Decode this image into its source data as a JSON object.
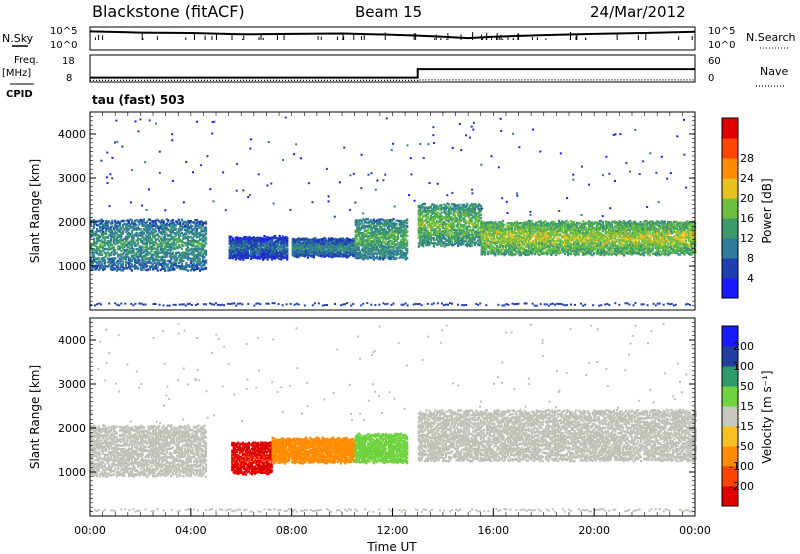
{
  "header": {
    "radar": "Blackstone (fitACF)",
    "beam": "Beam 15",
    "date": "24/Mar/2012"
  },
  "left_labels": {
    "nsky": "N.Sky",
    "freq": "Freq.",
    "freq_unit": "[MHz]",
    "cpid": "CPID"
  },
  "right_labels": {
    "nsearch": "N.Search",
    "nave": "Nave"
  },
  "mode_text": "tau (fast) 503",
  "colors": {
    "power_scale": [
      "#1a1aff",
      "#1f3fb0",
      "#2e7a9a",
      "#3d9a6a",
      "#6fbf3f",
      "#e8c020",
      "#ff8c00",
      "#ff4500",
      "#e00000"
    ],
    "velocity_scale": [
      "#e00000",
      "#ff4500",
      "#ff8c00",
      "#f5c020",
      "#c8c8c0",
      "#6fd23f",
      "#2e9a6a",
      "#2040a0",
      "#1a1aff"
    ],
    "ground_scatter": "#c0c0b8"
  },
  "chart_data": [
    {
      "type": "line",
      "panel": "noise",
      "left_ticks": [
        "10^5",
        "10^0"
      ],
      "right_ticks": [
        "10^5",
        "10^0"
      ],
      "x_hours": [
        0,
        2,
        4,
        6,
        8,
        10,
        12,
        13,
        14,
        15,
        16,
        18,
        20,
        22,
        24
      ],
      "nsky_log": [
        4.2,
        3.9,
        3.8,
        3.5,
        3.6,
        3.7,
        3.4,
        3.2,
        2.9,
        2.6,
        2.9,
        3.3,
        3.6,
        3.8,
        4.1
      ]
    },
    {
      "type": "line",
      "panel": "frequency",
      "left_ticks": [
        "18",
        "8"
      ],
      "right_ticks": [
        "60",
        "0"
      ],
      "x_hours": [
        0,
        13,
        13,
        24
      ],
      "freq_mhz": [
        10,
        10,
        15,
        15
      ],
      "nave": [
        2,
        2,
        4,
        4
      ]
    },
    {
      "type": "heatmap",
      "panel": "power",
      "ylabel": "Slant Range [km]",
      "ylim": [
        0,
        4500
      ],
      "y_ticks": [
        "1000",
        "2000",
        "3000",
        "4000"
      ],
      "colorbar_label": "Power [dB]",
      "colorbar_ticks": [
        "4",
        "8",
        "12",
        "16",
        "20",
        "24",
        "28"
      ],
      "bands": [
        {
          "t0": 0.0,
          "t1": 4.6,
          "r0": 950,
          "r1": 2100,
          "v": 14
        },
        {
          "t0": 5.5,
          "t1": 7.8,
          "r0": 1200,
          "r1": 1700,
          "v": 10
        },
        {
          "t0": 8.0,
          "t1": 10.5,
          "r0": 1250,
          "r1": 1650,
          "v": 12
        },
        {
          "t0": 10.5,
          "t1": 12.6,
          "r0": 1200,
          "r1": 2100,
          "v": 16
        },
        {
          "t0": 13.0,
          "t1": 15.5,
          "r0": 1500,
          "r1": 2450,
          "v": 18
        },
        {
          "t0": 15.5,
          "t1": 24.0,
          "r0": 1300,
          "r1": 2050,
          "v": 20
        }
      ]
    },
    {
      "type": "heatmap",
      "panel": "velocity",
      "xlabel": "Time UT",
      "ylabel": "Slant Range [km]",
      "ylim": [
        0,
        4500
      ],
      "y_ticks": [
        "1000",
        "2000",
        "3000",
        "4000"
      ],
      "x_ticks": [
        "00:00",
        "04:00",
        "08:00",
        "12:00",
        "16:00",
        "20:00",
        "00:00"
      ],
      "colorbar_label": "Velocity [m s⁻¹]",
      "colorbar_ticks": [
        "-200",
        "-100",
        "-50",
        "-15",
        "15",
        "50",
        "100",
        "200"
      ],
      "bands": [
        {
          "t0": 0.0,
          "t1": 4.6,
          "r0": 950,
          "r1": 2100,
          "v": 0
        },
        {
          "t0": 5.6,
          "t1": 7.2,
          "r0": 1000,
          "r1": 1700,
          "v": -200
        },
        {
          "t0": 7.2,
          "t1": 10.5,
          "r0": 1250,
          "r1": 1800,
          "v": -90
        },
        {
          "t0": 10.5,
          "t1": 12.6,
          "r0": 1250,
          "r1": 1900,
          "v": 30
        },
        {
          "t0": 13.0,
          "t1": 24.0,
          "r0": 1300,
          "r1": 2450,
          "v": 0
        }
      ]
    }
  ]
}
